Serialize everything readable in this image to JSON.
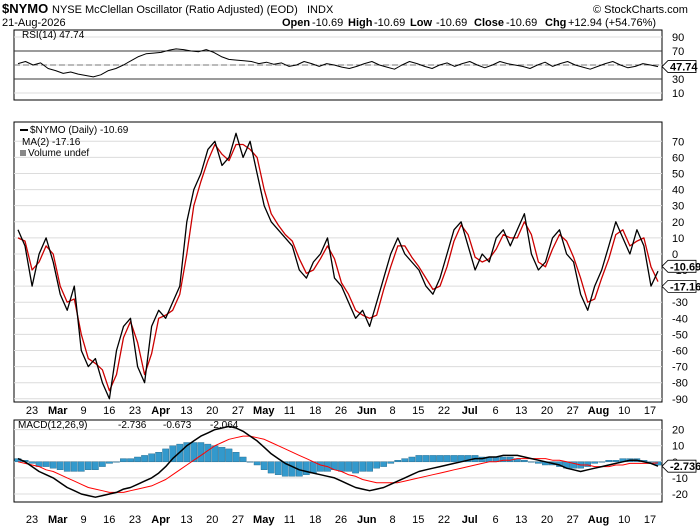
{
  "header": {
    "symbol": "$NYMO",
    "description": "NYSE McClellan Oscillator (Ratio Adjusted) (EOD)",
    "exchange": "INDX",
    "date": "21-Aug-2026",
    "open_label": "Open",
    "open": "-10.69",
    "high_label": "High",
    "high": "-10.69",
    "low_label": "Low",
    "low": "-10.69",
    "close_label": "Close",
    "close": "-10.69",
    "chg_label": "Chg",
    "chg": "+12.94 (+54.76%)",
    "watermark": "© StockCharts.com"
  },
  "colors": {
    "price_line": "#000000",
    "ma_line": "#cc0000",
    "ma_legend": "#000099",
    "macd_hist": "#3399cc",
    "macd_signal": "#ff0000",
    "rsi_line": "#000000",
    "value_box_bg": "#ffffff"
  },
  "x_axis": {
    "labels": [
      "23",
      "Mar",
      "9",
      "16",
      "23",
      "Apr",
      "13",
      "20",
      "27",
      "May",
      "11",
      "18",
      "26",
      "Jun",
      "8",
      "15",
      "22",
      "Jul",
      "6",
      "13",
      "20",
      "27",
      "Aug",
      "10",
      "17"
    ],
    "bold": [
      "Mar",
      "Apr",
      "May",
      "Jun",
      "Jul",
      "Aug"
    ]
  },
  "chart_data": [
    {
      "type": "line",
      "panel": "rsi",
      "legend": "RSI(14) 47.74",
      "last_value": "47.74",
      "y_ticks": [
        "90",
        "70",
        "50",
        "30",
        "10"
      ],
      "ylim": [
        0,
        100
      ],
      "levels": [
        70,
        30
      ],
      "values": [
        52,
        55,
        50,
        53,
        45,
        42,
        38,
        40,
        37,
        35,
        33,
        36,
        42,
        45,
        50,
        56,
        62,
        66,
        67,
        68,
        71,
        73,
        72,
        70,
        69,
        72,
        68,
        62,
        58,
        57,
        56,
        55,
        52,
        54,
        51,
        53,
        48,
        50,
        55,
        52,
        48,
        52,
        50,
        47,
        45,
        48,
        52,
        55,
        50,
        47,
        44,
        50,
        55,
        52,
        48,
        45,
        50,
        53,
        48,
        52,
        55,
        50,
        46,
        50,
        55,
        52,
        50,
        48,
        45,
        50,
        54,
        48,
        52,
        55,
        50,
        47,
        44,
        48,
        52,
        55,
        50,
        46,
        48,
        52,
        50,
        47.74
      ]
    },
    {
      "type": "line",
      "panel": "price",
      "series": [
        {
          "name": "$NYMO (Daily)",
          "legend": "$NYMO (Daily) -10.69",
          "values": [
            15,
            5,
            -20,
            0,
            10,
            -5,
            -25,
            -35,
            -20,
            -60,
            -70,
            -65,
            -80,
            -90,
            -60,
            -45,
            -40,
            -70,
            -80,
            -45,
            -35,
            -40,
            -30,
            -20,
            20,
            40,
            50,
            65,
            70,
            55,
            60,
            75,
            60,
            70,
            50,
            30,
            20,
            15,
            10,
            5,
            -10,
            -15,
            -5,
            0,
            10,
            -15,
            -20,
            -30,
            -40,
            -35,
            -45,
            -30,
            -15,
            0,
            10,
            0,
            -5,
            -10,
            -20,
            -25,
            -15,
            0,
            15,
            20,
            5,
            -10,
            0,
            -5,
            10,
            15,
            5,
            15,
            25,
            0,
            -10,
            -5,
            10,
            15,
            0,
            -5,
            -25,
            -35,
            -20,
            -10,
            5,
            20,
            10,
            0,
            15,
            5,
            -20,
            -10.69
          ]
        },
        {
          "name": "MA(2)",
          "legend": "MA(2) -17.16",
          "values": [
            10,
            8,
            -10,
            -5,
            5,
            0,
            -20,
            -30,
            -28,
            -50,
            -65,
            -68,
            -72,
            -85,
            -75,
            -52,
            -42,
            -55,
            -75,
            -62,
            -40,
            -38,
            -35,
            -25,
            0,
            30,
            45,
            58,
            68,
            62,
            58,
            68,
            68,
            65,
            60,
            40,
            25,
            18,
            12,
            8,
            -3,
            -12,
            -10,
            -3,
            5,
            -3,
            -18,
            -25,
            -35,
            -38,
            -40,
            -38,
            -22,
            -8,
            5,
            5,
            -2,
            -8,
            -15,
            -22,
            -20,
            -8,
            8,
            18,
            12,
            -2,
            -5,
            -3,
            3,
            12,
            10,
            10,
            20,
            12,
            -5,
            -8,
            3,
            12,
            8,
            -2,
            -15,
            -30,
            -28,
            -15,
            -3,
            12,
            15,
            5,
            8,
            10,
            -8,
            -17.16
          ]
        }
      ],
      "volume_legend": "Volume undef",
      "last_values": [
        "-10.69",
        "-17.16"
      ],
      "y_ticks": [
        "70",
        "60",
        "50",
        "40",
        "30",
        "20",
        "10",
        "0",
        "-10",
        "-20",
        "-30",
        "-40",
        "-50",
        "-60",
        "-70",
        "-80",
        "-90"
      ],
      "ylim": [
        -92,
        82
      ]
    },
    {
      "type": "line",
      "panel": "macd",
      "legend_label": "MACD(12,26,9)",
      "legend_values": [
        "-2.736",
        "-0.673",
        "-2.064"
      ],
      "last_value": "-2.736",
      "y_ticks": [
        "20",
        "10",
        "0",
        "-10",
        "-20"
      ],
      "ylim": [
        -25,
        26
      ],
      "macd": [
        2,
        0,
        -3,
        -6,
        -8,
        -10,
        -13,
        -16,
        -18,
        -20,
        -21,
        -22,
        -21,
        -20,
        -19,
        -17,
        -16,
        -14,
        -12,
        -10,
        -7,
        -3,
        2,
        6,
        10,
        13,
        16,
        18,
        20,
        21,
        22,
        21,
        19,
        16,
        13,
        9,
        5,
        2,
        -1,
        -3,
        -5,
        -6,
        -7,
        -8,
        -9,
        -10,
        -12,
        -14,
        -16,
        -17,
        -18,
        -17,
        -16,
        -14,
        -12,
        -10,
        -8,
        -6,
        -5,
        -4,
        -3,
        -2,
        -1,
        0,
        1,
        2,
        2,
        3,
        3,
        4,
        4,
        4,
        3,
        2,
        1,
        0,
        -1,
        -2,
        -4,
        -5,
        -6,
        -5,
        -4,
        -3,
        -2,
        -1,
        0,
        1,
        1,
        0,
        -1,
        -2.736
      ],
      "signal": [
        0,
        -1,
        -2,
        -3,
        -5,
        -6,
        -8,
        -10,
        -12,
        -14,
        -16,
        -17,
        -18,
        -19,
        -19,
        -19,
        -18,
        -17,
        -16,
        -15,
        -13,
        -11,
        -8,
        -5,
        -2,
        1,
        4,
        7,
        10,
        12,
        14,
        15,
        16,
        16,
        15,
        14,
        12,
        10,
        8,
        6,
        4,
        2,
        0,
        -2,
        -3,
        -5,
        -6,
        -8,
        -9,
        -11,
        -12,
        -13,
        -13,
        -13,
        -13,
        -12,
        -11,
        -10,
        -9,
        -8,
        -7,
        -6,
        -5,
        -4,
        -3,
        -2,
        -1,
        0,
        0,
        1,
        1,
        2,
        2,
        2,
        2,
        2,
        1,
        1,
        0,
        -1,
        -2,
        -2,
        -3,
        -3,
        -3,
        -2,
        -2,
        -1,
        -1,
        -1,
        -1,
        -0.673
      ]
    }
  ]
}
